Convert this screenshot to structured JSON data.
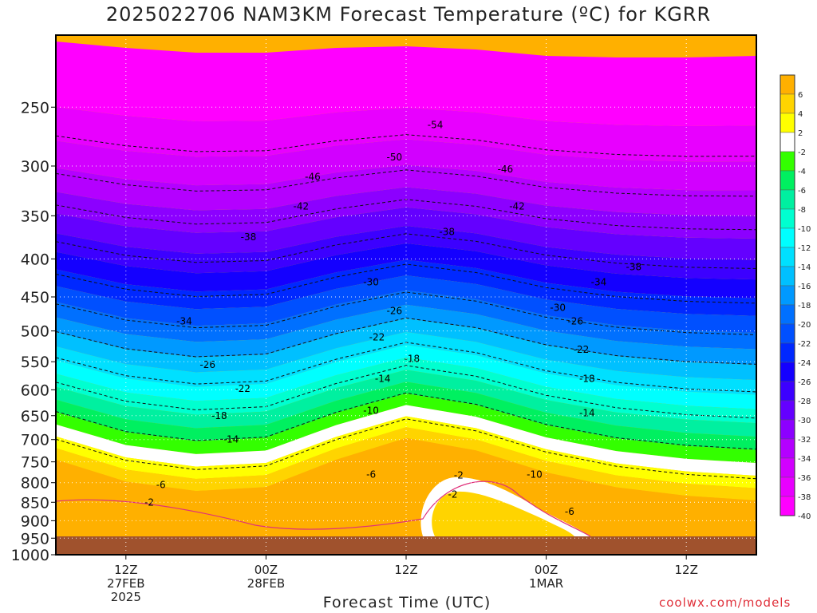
{
  "title": "2025022706 NAM3KM Forecast Temperature (ºC) for KGRR",
  "credit": "coolwx.com/models",
  "chart_data": {
    "type": "heatmap",
    "title": "2025022706 NAM3KM Forecast Temperature (ºC) for KGRR",
    "xlabel": "Forecast Time (UTC)",
    "ylabel": "",
    "x_ticks": [
      {
        "hour": 6,
        "lines": [
          "12Z",
          "27FEB",
          "2025"
        ]
      },
      {
        "hour": 18,
        "lines": [
          "00Z",
          "28FEB"
        ]
      },
      {
        "hour": 30,
        "lines": [
          "12Z"
        ]
      },
      {
        "hour": 42,
        "lines": [
          "00Z",
          "1MAR"
        ]
      },
      {
        "hour": 54,
        "lines": [
          "12Z"
        ]
      }
    ],
    "xlim": [
      0,
      60
    ],
    "y_ticks": [
      250,
      300,
      350,
      400,
      450,
      500,
      550,
      600,
      650,
      700,
      750,
      800,
      850,
      900,
      950,
      1000
    ],
    "y_scale": "log",
    "ylim": [
      1000,
      200
    ],
    "grid": true,
    "legend": "right colorbar",
    "colorbar": {
      "labels": [
        "6",
        "4",
        "2",
        "-2",
        "-4",
        "-6",
        "-8",
        "-10",
        "-12",
        "-14",
        "-16",
        "-18",
        "-20",
        "-22",
        "-24",
        "-26",
        "-28",
        "-30",
        "-32",
        "-34",
        "-36",
        "-38",
        "-40"
      ],
      "colors": [
        "#ffb000",
        "#ffd400",
        "#ffff00",
        "#ffffff",
        "#33ff00",
        "#00f060",
        "#00f0a0",
        "#00ffd0",
        "#00ffff",
        "#00e0ff",
        "#00c0ff",
        "#0099ff",
        "#0070ff",
        "#0050ff",
        "#0028ff",
        "#1400ff",
        "#3c00ff",
        "#6400ff",
        "#8c00ff",
        "#b400ff",
        "#d200ff",
        "#e800ff",
        "#ff00ff"
      ]
    },
    "contour_labels": [
      {
        "text": "-54",
        "hour": 32.5,
        "p": 264
      },
      {
        "text": "-50",
        "hour": 29,
        "p": 292
      },
      {
        "text": "-46",
        "hour": 22,
        "p": 310
      },
      {
        "text": "-46",
        "hour": 38.5,
        "p": 303
      },
      {
        "text": "-42",
        "hour": 21,
        "p": 340
      },
      {
        "text": "-42",
        "hour": 39.5,
        "p": 340
      },
      {
        "text": "-38",
        "hour": 16.5,
        "p": 374
      },
      {
        "text": "-38",
        "hour": 33.5,
        "p": 368
      },
      {
        "text": "-38",
        "hour": 49.5,
        "p": 410
      },
      {
        "text": "-34",
        "hour": 11,
        "p": 485
      },
      {
        "text": "-34",
        "hour": 46.5,
        "p": 430
      },
      {
        "text": "-30",
        "hour": 27,
        "p": 430
      },
      {
        "text": "-30",
        "hour": 43,
        "p": 465
      },
      {
        "text": "-26",
        "hour": 13,
        "p": 555
      },
      {
        "text": "-26",
        "hour": 29,
        "p": 470
      },
      {
        "text": "-26",
        "hour": 44.5,
        "p": 485
      },
      {
        "text": "-22",
        "hour": 16,
        "p": 598
      },
      {
        "text": "-22",
        "hour": 27.5,
        "p": 510
      },
      {
        "text": "-22",
        "hour": 45,
        "p": 530
      },
      {
        "text": "-18",
        "hour": 14,
        "p": 650
      },
      {
        "text": "-18",
        "hour": 30.5,
        "p": 545
      },
      {
        "text": "-18",
        "hour": 45.5,
        "p": 580
      },
      {
        "text": "-14",
        "hour": 15,
        "p": 700
      },
      {
        "text": "-14",
        "hour": 28,
        "p": 580
      },
      {
        "text": "-14",
        "hour": 45.5,
        "p": 645
      },
      {
        "text": "-10",
        "hour": 27,
        "p": 640
      },
      {
        "text": "-10",
        "hour": 41,
        "p": 780
      },
      {
        "text": "-6",
        "hour": 9,
        "p": 805
      },
      {
        "text": "-6",
        "hour": 27,
        "p": 780
      },
      {
        "text": "-6",
        "hour": 44,
        "p": 875
      },
      {
        "text": "-2",
        "hour": 8,
        "p": 850
      },
      {
        "text": "-2",
        "hour": 34.5,
        "p": 782
      },
      {
        "text": "-2",
        "hour": 34,
        "p": 830
      }
    ]
  }
}
